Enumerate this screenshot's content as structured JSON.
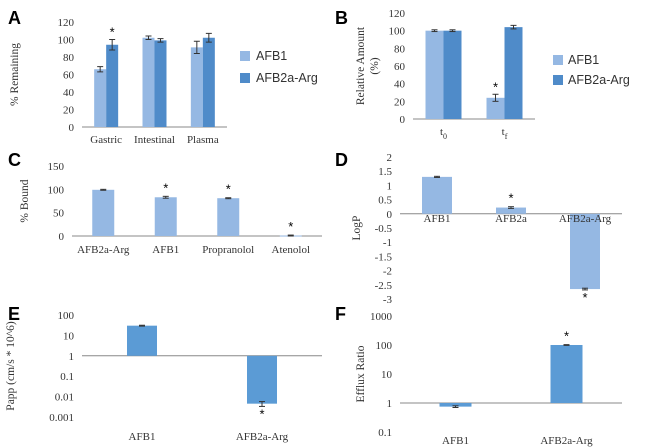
{
  "colors": {
    "light": "#95b8e3",
    "dark": "#4f8bc9",
    "mid": "#5b9bd5",
    "axis": "#888888"
  },
  "chart_data": [
    {
      "panel": "A",
      "type": "bar",
      "ylabel": "% Remaining",
      "ylim": [
        0,
        120
      ],
      "yticks": [
        0,
        20,
        40,
        60,
        80,
        100,
        120
      ],
      "categories": [
        "Gastric",
        "Intestinal",
        "Plasma"
      ],
      "series": [
        {
          "name": "AFB1",
          "values": [
            66,
            102,
            91
          ],
          "errors": [
            3,
            2,
            7
          ]
        },
        {
          "name": "AFB2a-Arg",
          "values": [
            94,
            99,
            102
          ],
          "errors": [
            6,
            2,
            5
          ]
        }
      ],
      "annotations": [
        "*"
      ],
      "legend": "right"
    },
    {
      "panel": "B",
      "type": "bar",
      "ylabel": "Relative Amount (%)",
      "ylim": [
        0,
        120
      ],
      "yticks": [
        0,
        20,
        40,
        60,
        80,
        100,
        120
      ],
      "categories": [
        "t0",
        "tf"
      ],
      "series": [
        {
          "name": "AFB1",
          "values": [
            100,
            24
          ],
          "errors": [
            1,
            4
          ]
        },
        {
          "name": "AFB2a-Arg",
          "values": [
            100,
            104
          ],
          "errors": [
            1,
            2
          ]
        }
      ],
      "annotations": [
        "*"
      ],
      "legend": "right"
    },
    {
      "panel": "C",
      "type": "bar",
      "ylabel": "% Bound",
      "ylim": [
        0,
        150
      ],
      "yticks": [
        0,
        50,
        100,
        150
      ],
      "categories": [
        "AFB2a-Arg",
        "AFB1",
        "Propranolol",
        "Atenolol"
      ],
      "values": [
        99,
        83,
        81,
        1
      ],
      "errors": [
        1,
        2,
        1,
        1
      ],
      "annotations": [
        "*",
        "*",
        "*"
      ]
    },
    {
      "panel": "D",
      "type": "bar",
      "ylabel": "LogP",
      "ylim": [
        -3,
        2
      ],
      "yticks": [
        -3,
        -2.5,
        -2,
        -1.5,
        -1,
        -0.5,
        0,
        0.5,
        1,
        1.5,
        2
      ],
      "ytick_labels": [
        "-3",
        "-2.5",
        "-2",
        "-1.5",
        "-1",
        "-0.5",
        "0",
        "0.5",
        "1",
        "1.5",
        "2"
      ],
      "categories": [
        "AFB1",
        "AFB2a",
        "AFB2a-Arg"
      ],
      "values": [
        1.3,
        0.22,
        -2.65
      ],
      "errors": [
        0.02,
        0.03,
        0.03
      ],
      "annotations": [
        "*",
        "*"
      ]
    },
    {
      "panel": "E",
      "type": "bar",
      "yscale": "log",
      "ylabel": "Papp (cm/s * 10^6)",
      "ylim": [
        0.001,
        100
      ],
      "yticks": [
        0.001,
        0.01,
        0.1,
        1,
        10,
        100
      ],
      "ytick_labels": [
        "0.001",
        "0.01",
        "0.1",
        "1",
        "10",
        "100"
      ],
      "categories": [
        "AFB1",
        "AFB2a-Arg"
      ],
      "values": [
        30,
        0.0045
      ],
      "errors": [
        1.5,
        0.0012
      ],
      "annotations": [
        "*"
      ]
    },
    {
      "panel": "F",
      "type": "bar",
      "yscale": "log",
      "ylabel": "Efflux Ratio",
      "ylim": [
        0.1,
        1000
      ],
      "yticks": [
        0.1,
        1,
        10,
        100,
        1000
      ],
      "ytick_labels": [
        "0.1",
        "1",
        "10",
        "100",
        "1000"
      ],
      "categories": [
        "AFB1",
        "AFB2a-Arg"
      ],
      "values": [
        0.75,
        100
      ],
      "errors": [
        0.05,
        3
      ],
      "annotations": [
        "*"
      ]
    }
  ]
}
